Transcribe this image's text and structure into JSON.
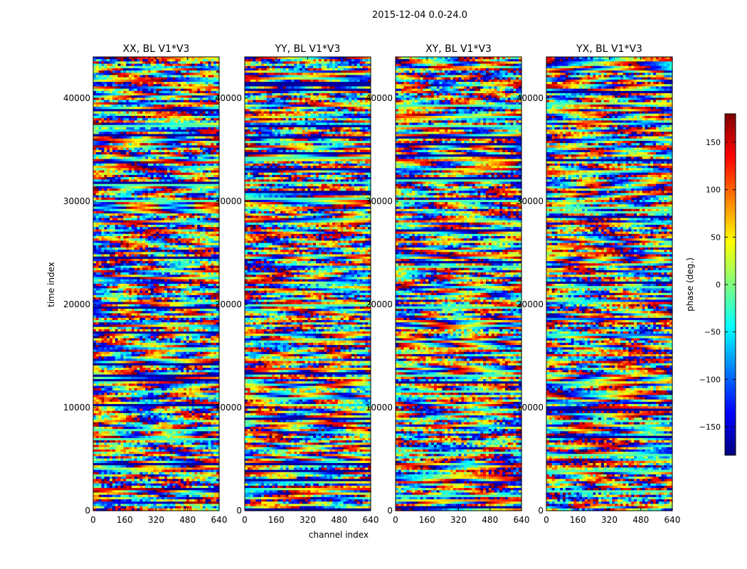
{
  "figure": {
    "suptitle": "2015-12-04 0.0-24.0"
  },
  "chart_data": {
    "type": "heatmap",
    "xlabel": "channel index",
    "ylabel": "time index",
    "xlim": [
      0,
      640
    ],
    "ylim": [
      0,
      44000
    ],
    "xticks": [
      0,
      160,
      320,
      480,
      640
    ],
    "yticks": [
      0,
      10000,
      20000,
      30000,
      40000
    ],
    "panels": [
      {
        "title": "XX, BL V1*V3"
      },
      {
        "title": "YY, BL V1*V3"
      },
      {
        "title": "XY, BL V1*V3"
      },
      {
        "title": "YX, BL V1*V3"
      }
    ],
    "colorbar": {
      "label": "phase (deg.)",
      "range": [
        -180,
        180
      ],
      "ticks": [
        150,
        100,
        50,
        0,
        -50,
        -100,
        -150
      ],
      "colormap": "jet",
      "colors": [
        "#00007f",
        "#0000ff",
        "#007fff",
        "#00ffff",
        "#7fff7f",
        "#ffff00",
        "#ff7f00",
        "#ff0000",
        "#7f0000"
      ]
    }
  }
}
